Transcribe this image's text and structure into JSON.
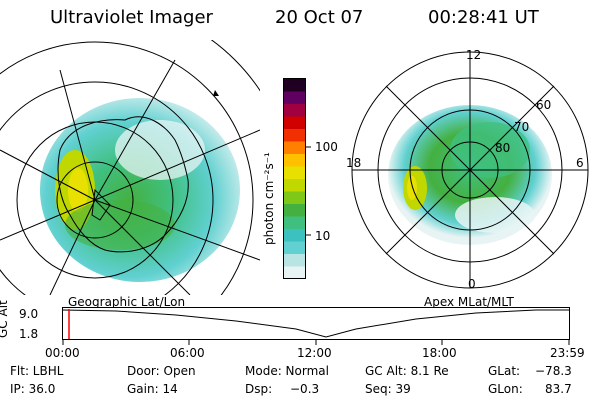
{
  "header": {
    "title": "Ultraviolet Imager",
    "date": "20 Oct 07",
    "time": "00:28:41 UT"
  },
  "left_panel": {
    "label": "Geographic Lat/Lon"
  },
  "right_panel": {
    "label": "Apex MLat/MLT",
    "mlt_labels": [
      "12",
      "18",
      "6",
      "0"
    ],
    "mlat_labels": [
      "60",
      "70",
      "80"
    ]
  },
  "colorbar": {
    "unit_label": "photon cm⁻²s⁻¹",
    "tick_labels": [
      "100",
      "10"
    ],
    "colors": [
      "#e8f4f4",
      "#b8e4e4",
      "#60d0d0",
      "#3cc0c0",
      "#40c080",
      "#44b040",
      "#80c818",
      "#c0d800",
      "#e8e000",
      "#ffc000",
      "#ff8000",
      "#f03000",
      "#d00000",
      "#a00040",
      "#600060",
      "#200020"
    ]
  },
  "timeline": {
    "axis_label": "GC Alt",
    "y_ticks": [
      "9.0",
      "1.8"
    ],
    "x_ticks": [
      "00:00",
      "06:00",
      "12:00",
      "18:00",
      "23:59"
    ],
    "marker_color": "#ff0000"
  },
  "info": {
    "flt": "Flt: LBHL",
    "ip": "IP: 36.0",
    "door": "Door: Open",
    "gain": "Gain: 14",
    "mode": "Mode: Normal",
    "dsp_label": "Dsp:",
    "dsp_value": "−0.3",
    "gcalt": "GC Alt: 8.1 Re",
    "seq": "Seq: 39",
    "glat_label": "GLat:",
    "glat_value": "−78.3",
    "glon_label": "GLon:",
    "glon_value": "83.7"
  }
}
